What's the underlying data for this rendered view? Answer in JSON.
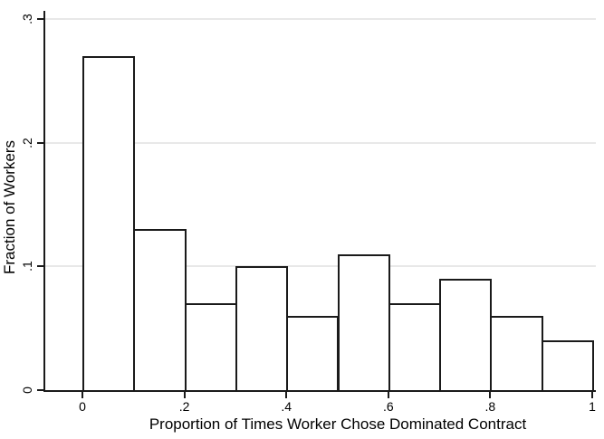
{
  "chart_data": {
    "type": "bar",
    "subtype": "histogram",
    "title": "",
    "xlabel": "Proportion of Times Worker Chose Dominated Contract",
    "ylabel": "Fraction of Workers",
    "bin_width": 0.1,
    "bin_starts": [
      0,
      0.1,
      0.2,
      0.3,
      0.4,
      0.5,
      0.6,
      0.7,
      0.8,
      0.9
    ],
    "values": [
      0.27,
      0.13,
      0.07,
      0.1,
      0.06,
      0.11,
      0.07,
      0.09,
      0.06,
      0.04
    ],
    "xlim": [
      0,
      1
    ],
    "ylim": [
      0,
      0.3
    ],
    "x_ticks": [
      {
        "value": 0,
        "label": "0"
      },
      {
        "value": 0.2,
        "label": ".2"
      },
      {
        "value": 0.4,
        "label": ".4"
      },
      {
        "value": 0.6,
        "label": ".6"
      },
      {
        "value": 0.8,
        "label": ".8"
      },
      {
        "value": 1,
        "label": "1"
      }
    ],
    "y_ticks": [
      {
        "value": 0,
        "label": "0"
      },
      {
        "value": 0.1,
        "label": ".1"
      },
      {
        "value": 0.2,
        "label": ".2"
      },
      {
        "value": 0.3,
        "label": ".3"
      }
    ],
    "grid": "horizontal-at-yticks",
    "legend": "none",
    "colors": {
      "bar_fill": "#ffffff",
      "bar_border": "#1a1a1a",
      "axis": "#1a1a1a",
      "gridline": "#e8e8e8",
      "text": "#000000",
      "background": "#ffffff"
    }
  }
}
